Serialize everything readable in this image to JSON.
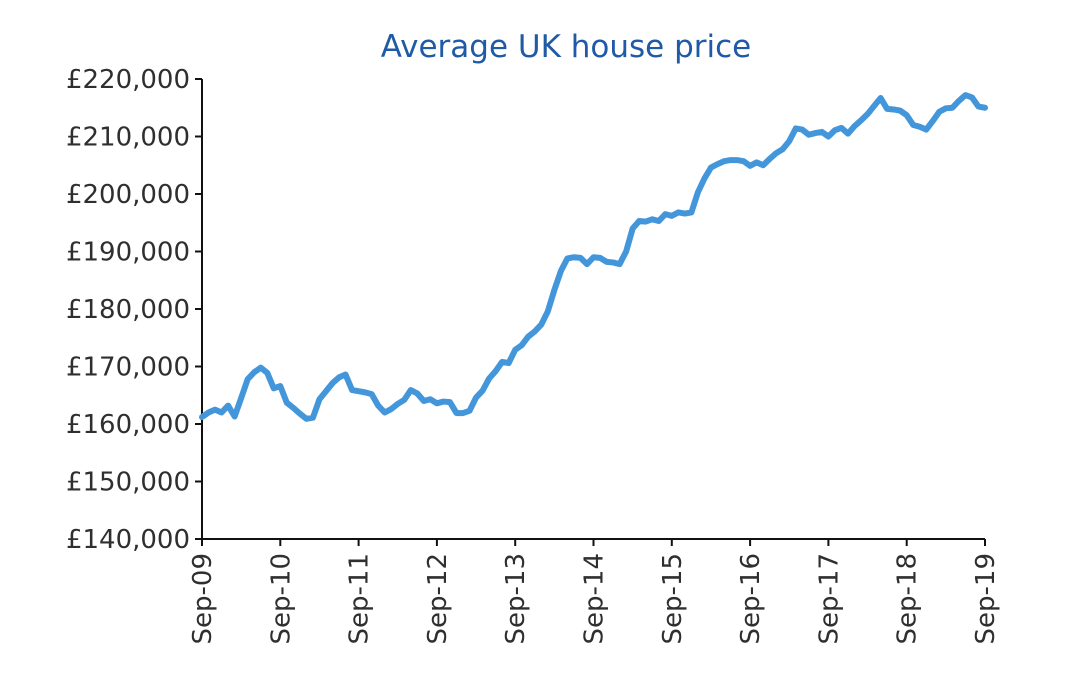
{
  "chart_data": {
    "type": "line",
    "title": "Average UK house price",
    "xlabel": "",
    "ylabel": "",
    "ylim": [
      140000,
      220000
    ],
    "yticks": [
      140000,
      150000,
      160000,
      170000,
      180000,
      190000,
      200000,
      210000,
      220000
    ],
    "ytick_labels": [
      "£140,000",
      "£150,000",
      "£160,000",
      "£170,000",
      "£180,000",
      "£190,000",
      "£200,000",
      "£210,000",
      "£220,000"
    ],
    "xlim": [
      0,
      120
    ],
    "xticks": [
      0,
      12,
      24,
      36,
      48,
      60,
      72,
      84,
      96,
      108,
      120
    ],
    "xtick_labels": [
      "Sep-09",
      "Sep-10",
      "Sep-11",
      "Sep-12",
      "Sep-13",
      "Sep-14",
      "Sep-15",
      "Sep-16",
      "Sep-17",
      "Sep-18",
      "Sep-19"
    ],
    "grid": false,
    "series": [
      {
        "name": "Average UK house price",
        "color": "#4496db",
        "x": [
          0,
          1,
          2,
          3,
          4,
          5,
          6,
          7,
          8,
          9,
          10,
          11,
          12,
          13,
          14,
          15,
          16,
          17,
          18,
          19,
          20,
          21,
          22,
          23,
          24,
          25,
          26,
          27,
          28,
          29,
          30,
          31,
          32,
          33,
          34,
          35,
          36,
          37,
          38,
          39,
          40,
          41,
          42,
          43,
          44,
          45,
          46,
          47,
          48,
          49,
          50,
          51,
          52,
          53,
          54,
          55,
          56,
          57,
          58,
          59,
          60,
          61,
          62,
          63,
          64,
          65,
          66,
          67,
          68,
          69,
          70,
          71,
          72,
          73,
          74,
          75,
          76,
          77,
          78,
          79,
          80,
          81,
          82,
          83,
          84,
          85,
          86,
          87,
          88,
          89,
          90,
          91,
          92,
          93,
          94,
          95,
          96,
          97,
          98,
          99,
          100,
          101,
          102,
          103,
          104,
          105,
          106,
          107,
          108,
          109,
          110,
          111,
          112,
          113,
          114,
          115,
          116,
          117,
          118,
          119,
          120
        ],
        "values": [
          161200,
          162000,
          162500,
          162000,
          163200,
          161300,
          164500,
          167800,
          169000,
          169800,
          168900,
          166200,
          166600,
          163700,
          162800,
          161800,
          160900,
          161100,
          164300,
          165700,
          167100,
          168100,
          168600,
          165900,
          165700,
          165500,
          165200,
          163200,
          162000,
          162600,
          163500,
          164200,
          165900,
          165300,
          164000,
          164300,
          163600,
          163900,
          163800,
          161900,
          161900,
          162300,
          164600,
          165800,
          167900,
          169200,
          170800,
          170600,
          172900,
          173700,
          175200,
          176100,
          177300,
          179600,
          183300,
          186600,
          188800,
          189000,
          188900,
          187800,
          189000,
          188900,
          188200,
          188100,
          187800,
          190000,
          194000,
          195300,
          195200,
          195600,
          195300,
          196500,
          196200,
          196800,
          196600,
          196800,
          200300,
          202700,
          204600,
          205200,
          205700,
          205900,
          205900,
          205700,
          204900,
          205500,
          205000,
          206100,
          207100,
          207800,
          209200,
          211400,
          211200,
          210300,
          210600,
          210800,
          210000,
          211100,
          211500,
          210500,
          211800,
          212800,
          213900,
          215300,
          216700,
          214800,
          214700,
          214500,
          213700,
          212000,
          211700,
          211200,
          212700,
          214300,
          214900,
          215000,
          216200,
          217200,
          216800,
          215200,
          215000
        ]
      }
    ]
  }
}
